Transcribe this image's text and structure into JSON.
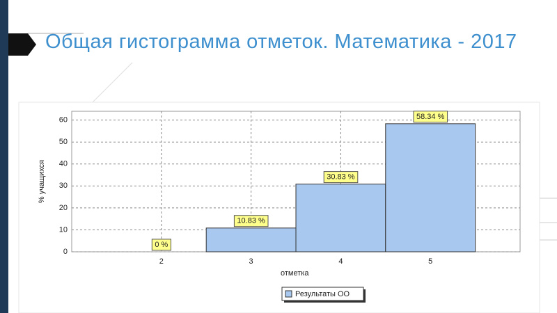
{
  "title": "Общая гистограмма отметок. Математика - 2017",
  "chart_data": {
    "type": "bar",
    "x": [
      2,
      3,
      4,
      5
    ],
    "xlim": [
      1,
      6
    ],
    "xticks": [
      2,
      3,
      4,
      5
    ],
    "ylim": [
      0,
      64
    ],
    "yticks": [
      0,
      10,
      20,
      30,
      40,
      50,
      60
    ],
    "x_label": "отметка",
    "y_label": "% учащихся",
    "grid": true,
    "legend": "bottom",
    "series": [
      {
        "name": "Результаты ОО",
        "color": "#a9c8ef",
        "values": [
          0,
          10.83,
          30.83,
          58.34
        ],
        "value_labels": [
          "0 %",
          "10.83 %",
          "30.83 %",
          "58.34 %"
        ]
      }
    ]
  }
}
